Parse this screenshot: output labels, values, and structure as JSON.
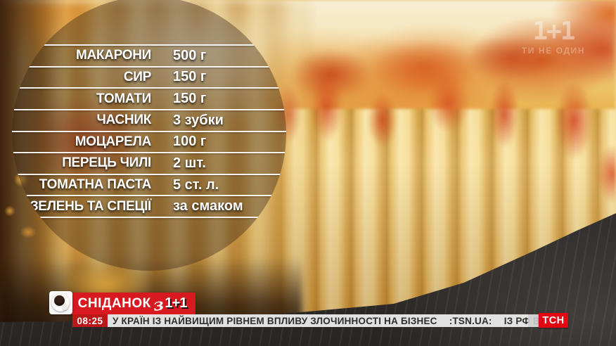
{
  "recipe": {
    "ingredients": [
      {
        "name": "МАКАРОНИ",
        "amount": "500 г"
      },
      {
        "name": "СИР",
        "amount": "150 г"
      },
      {
        "name": "ТОМАТИ",
        "amount": "150 г"
      },
      {
        "name": "ЧАСНИК",
        "amount": "3 зубки"
      },
      {
        "name": "МОЦАРЕЛА",
        "amount": "100 г"
      },
      {
        "name": "ПЕРЕЦЬ ЧИЛІ",
        "amount": "2 шт."
      },
      {
        "name": "ТОМАТНА ПАСТА",
        "amount": "5 ст. л."
      },
      {
        "name": "ЗЕЛЕНЬ ТА СПЕЦІЇ",
        "amount": "за смаком"
      }
    ]
  },
  "branding": {
    "show": {
      "name": "СНІДАНОК",
      "conjunction": "з",
      "channel": "1+1"
    },
    "coffee_icon": "coffee-cup-top-view",
    "watermark": {
      "channel": "1+1",
      "slogan": "ТИ НЕ ОДИН"
    },
    "tsn": "ТСН"
  },
  "ticker": {
    "time": "08:25",
    "headline": "У КРАЇН ІЗ НАЙВИЩИМ РІВНЕМ ВПЛИВУ ЗЛОЧИННОСТІ НА БІЗНЕС",
    "source": ":TSN.UA:",
    "teaser": "ІЗ РФ В"
  },
  "colors": {
    "brand_red": "#d81920",
    "tsn_red": "#e30613",
    "ticker_bg": "#f0f0f0",
    "ticker_text": "#2e2e2e",
    "overlay_tint": "rgba(58,38,22,0.40)",
    "line_white": "#ffffff"
  }
}
